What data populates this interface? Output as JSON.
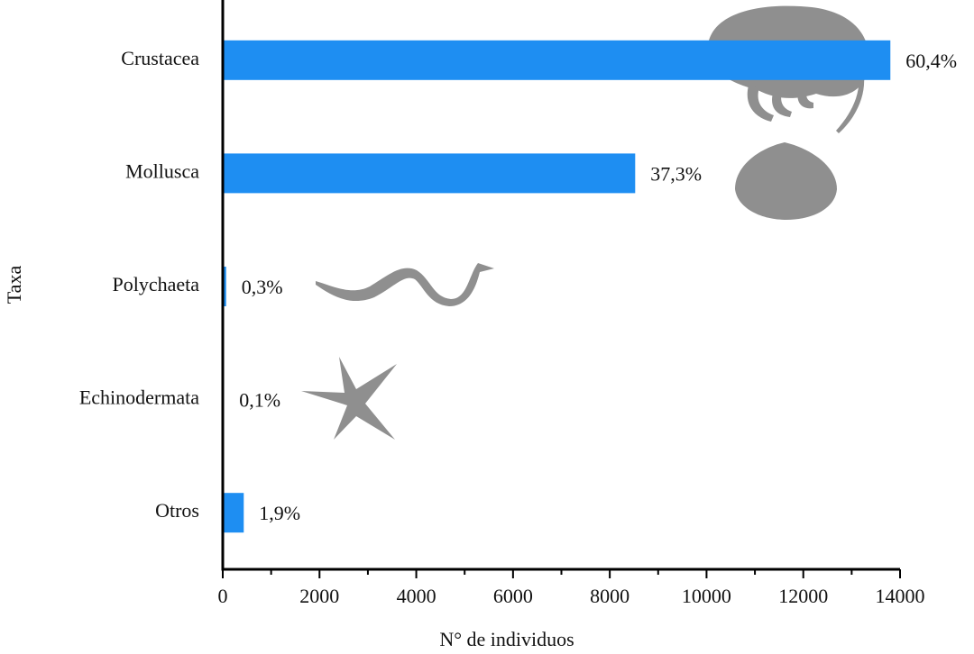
{
  "chart_data": {
    "type": "hbar",
    "categories": [
      "Crustacea",
      "Mollusca",
      "Polychaeta",
      "Echinodermata",
      "Otros"
    ],
    "values": [
      13800,
      8525,
      70,
      23,
      434
    ],
    "percent_labels": [
      "60,4%",
      "37,3%",
      "0,3%",
      "0,1%",
      "1,9%"
    ],
    "color": "#1e8ef2",
    "xlim": [
      0,
      14000
    ],
    "xticks": [
      0,
      2000,
      4000,
      6000,
      8000,
      10000,
      12000,
      14000
    ],
    "x_minor_ticks": [
      1000,
      3000,
      5000,
      7000,
      9000,
      11000,
      13000
    ],
    "xlabel": "N° de individuos",
    "ylabel": "Taxa"
  }
}
